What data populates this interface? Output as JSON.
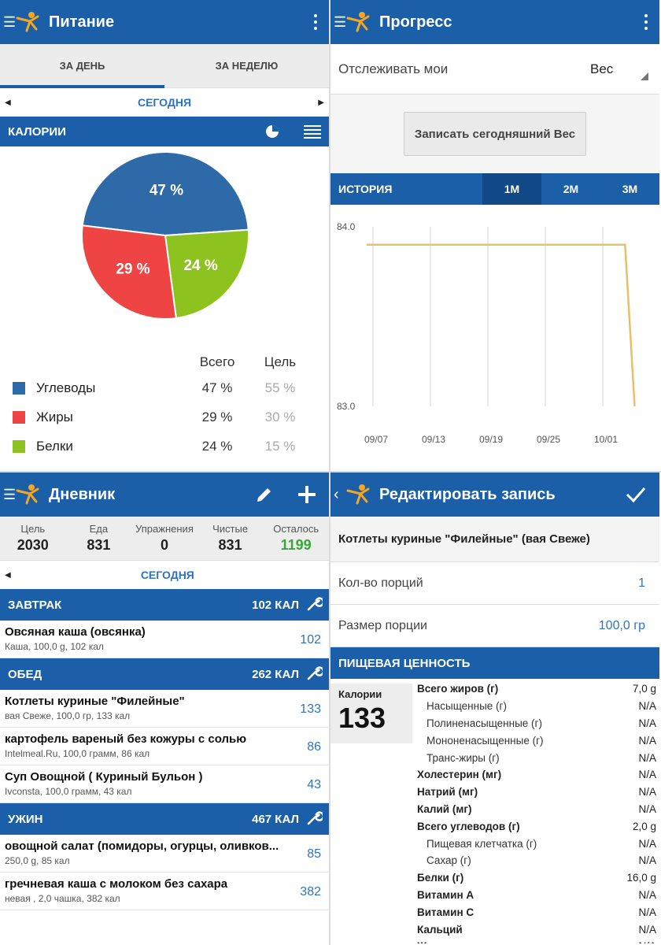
{
  "panel1": {
    "title": "Питание",
    "tabs": [
      "За день",
      "За неделю"
    ],
    "day": "Сегодня",
    "section": "Калории",
    "pie": [
      {
        "label": "47 %",
        "value": 47,
        "color": "#2f6aa8"
      },
      {
        "label": "24 %",
        "value": 24,
        "color": "#8ec21e"
      },
      {
        "label": "29 %",
        "value": 29,
        "color": "#ef4444"
      }
    ],
    "legend_head": {
      "total": "Всего",
      "goal": "Цель"
    },
    "legend": [
      {
        "name": "Углеводы",
        "total": "47 %",
        "goal": "55 %",
        "color": "#2f6aa8"
      },
      {
        "name": "Жиры",
        "total": "29 %",
        "goal": "30 %",
        "color": "#ef4444"
      },
      {
        "name": "Белки",
        "total": "24 %",
        "goal": "15 %",
        "color": "#8ec21e"
      }
    ]
  },
  "panel2": {
    "title": "Прогресс",
    "track_label": "Отслеживать мои",
    "track_value": "Вес",
    "log_button": "Записать сегодняшний Вес",
    "history": "История",
    "ranges": [
      "1M",
      "2M",
      "3M"
    ],
    "active_range": "1M"
  },
  "chart_data": {
    "type": "line",
    "title": "",
    "xlabel": "",
    "ylabel": "",
    "ylim": [
      83.0,
      84.0
    ],
    "yticks": [
      "84.0",
      "83.0"
    ],
    "x_ticks": [
      "09/07",
      "09/13",
      "09/19",
      "09/25",
      "10/01"
    ],
    "series": [
      {
        "x": [
          "09/06",
          "09/13",
          "09/19",
          "09/25",
          "10/01",
          "10/03",
          "10/04"
        ],
        "y": [
          83.9,
          83.9,
          83.9,
          83.9,
          83.9,
          83.9,
          83.0
        ],
        "color": "#e8bf6a"
      }
    ],
    "grid": true
  },
  "panel3": {
    "title": "Дневник",
    "summary": [
      {
        "label": "Цель",
        "value": "2030"
      },
      {
        "label": "Еда",
        "value": "831"
      },
      {
        "label": "Упражнения",
        "value": "0"
      },
      {
        "label": "Чистые",
        "value": "831"
      },
      {
        "label": "Осталось",
        "value": "1199"
      }
    ],
    "day": "Сегодня",
    "meals": [
      {
        "name": "Завтрак",
        "kcal": "102 КАЛ",
        "items": [
          {
            "name": "Овсяная каша (овсянка)",
            "desc": "Каша, 100,0 g, 102 кал",
            "kcal": "102"
          }
        ]
      },
      {
        "name": "Обед",
        "kcal": "262 КАЛ",
        "items": [
          {
            "name": "Котлеты куриные \"Филейные\"",
            "desc": "вая Свеже, 100,0 гр, 133 кал",
            "kcal": "133"
          },
          {
            "name": "картофель вареный без кожуры с солью",
            "desc": "Intelmeal.Ru, 100,0 грамм, 86 кал",
            "kcal": "86"
          },
          {
            "name": "Суп Овощной ( Куриный Бульон )",
            "desc": "Ivconsta, 100,0 грамм, 43 кал",
            "kcal": "43"
          }
        ]
      },
      {
        "name": "Ужин",
        "kcal": "467 КАЛ",
        "items": [
          {
            "name": "овощной салат (помидоры, огурцы, оливков...",
            "desc": "250,0 g, 85 кал",
            "kcal": "85"
          },
          {
            "name": "гречневая каша с молоком без сахара",
            "desc": "невая , 2,0 чашка, 382 кал",
            "kcal": "382"
          }
        ]
      }
    ]
  },
  "panel4": {
    "title": "Редактировать запись",
    "food": "Котлеты куриные \"Филейные\" (вая Свеже)",
    "servings_label": "Кол-во порций",
    "servings_value": "1",
    "size_label": "Размер порции",
    "size_value": "100,0 гр",
    "section": "Пищевая ценность",
    "calories_label": "Калории",
    "calories_value": "133",
    "nutrients": [
      {
        "name": "Всего жиров (г)",
        "value": "7,0 g",
        "style": "b"
      },
      {
        "name": "Насыщенные (г)",
        "value": "N/A",
        "style": "i"
      },
      {
        "name": "Полиненасыщенные (г)",
        "value": "N/A",
        "style": "i"
      },
      {
        "name": "Мононенасыщенные (г)",
        "value": "N/A",
        "style": "i"
      },
      {
        "name": "Транс-жиры (г)",
        "value": "N/A",
        "style": "i"
      },
      {
        "name": "Холестерин (мг)",
        "value": "N/A",
        "style": "b"
      },
      {
        "name": "Натрий (мг)",
        "value": "N/A",
        "style": "b"
      },
      {
        "name": "Калий (мг)",
        "value": "N/A",
        "style": "b"
      },
      {
        "name": "Всего углеводов (г)",
        "value": "2,0 g",
        "style": "b"
      },
      {
        "name": "Пищевая клетчатка (г)",
        "value": "N/A",
        "style": "i"
      },
      {
        "name": "Сахар (г)",
        "value": "N/A",
        "style": "i"
      },
      {
        "name": "Белки (г)",
        "value": "16,0 g",
        "style": "b"
      },
      {
        "name": "Витамин A",
        "value": "N/A",
        "style": "b"
      },
      {
        "name": "Витамин C",
        "value": "N/A",
        "style": "b"
      },
      {
        "name": "Кальций",
        "value": "N/A",
        "style": "b"
      },
      {
        "name": "Железо",
        "value": "N/A",
        "style": "b"
      }
    ]
  }
}
